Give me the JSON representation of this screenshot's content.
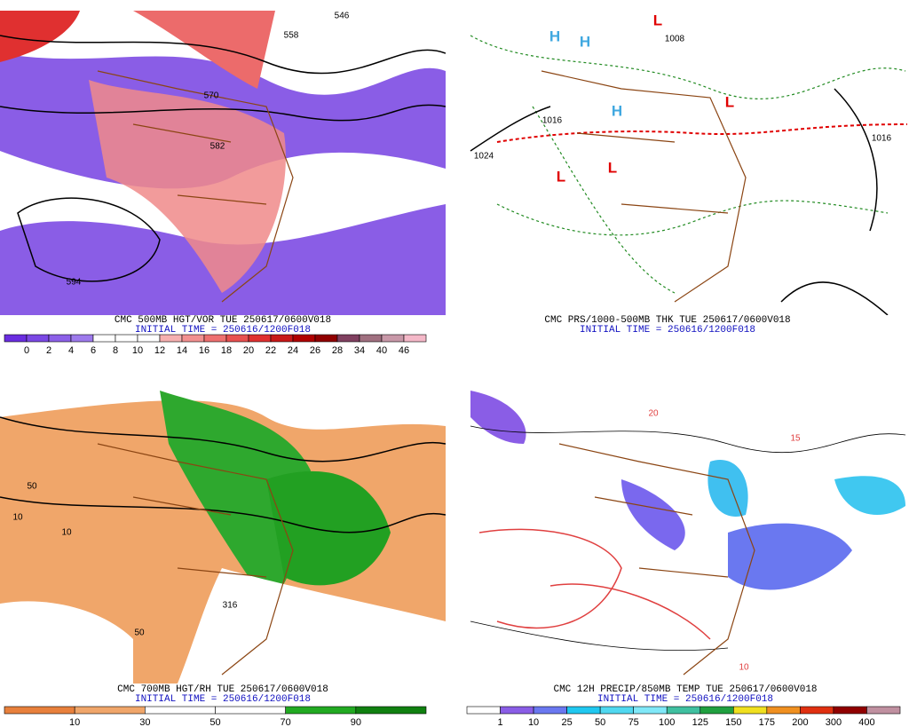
{
  "panels": [
    {
      "title": "CMC 500MB HGT/VOR TUE 250617/0600V018",
      "subtitle": "INITIAL TIME = 250616/1200F018",
      "colorbar": {
        "labels": [
          "0",
          "2",
          "4",
          "6",
          "8",
          "10",
          "12",
          "14",
          "16",
          "18",
          "20",
          "22",
          "24",
          "26",
          "28",
          "34",
          "40",
          "46"
        ],
        "colors": [
          "#6a2de0",
          "#7b48e4",
          "#8c60e8",
          "#9d7aec",
          "#ffffff",
          "#ffffff",
          "#ffffff",
          "#f6b0b0",
          "#f29090",
          "#ee7070",
          "#e85050",
          "#e03030",
          "#c81818",
          "#b00000",
          "#900000",
          "#804060",
          "#a07080",
          "#c898a8",
          "#f4b8c8"
        ]
      },
      "map_labels": [
        "558",
        "570",
        "582",
        "594",
        "546"
      ]
    },
    {
      "title": "CMC PRS/1000-500MB THK TUE 250617/0600V018",
      "subtitle": "INITIAL TIME = 250616/1200F018",
      "map_labels": [
        "L",
        "L",
        "L",
        "L",
        "H",
        "H",
        "H",
        "1008",
        "1016",
        "1024",
        "1016"
      ]
    },
    {
      "title": "CMC 700MB HGT/RH TUE 250617/0600V018",
      "subtitle": "INITIAL TIME = 250616/1200F018",
      "colorbar": {
        "labels": [
          "10",
          "30",
          "50",
          "70",
          "90"
        ],
        "colors": [
          "#e8803c",
          "#f0a66a",
          "#ffffff",
          "#ffffff",
          "#22aa22",
          "#108010"
        ]
      },
      "map_labels": [
        "10",
        "50",
        "50",
        "316",
        "10"
      ]
    },
    {
      "title": "CMC 12H PRECIP/850MB TEMP TUE 250617/0600V018",
      "subtitle": "INITIAL TIME = 250616/1200F018",
      "colorbar": {
        "labels": [
          "1",
          "10",
          "25",
          "50",
          "75",
          "100",
          "125",
          "150",
          "175",
          "200",
          "300",
          "400"
        ],
        "colors": [
          "#ffffff",
          "#8a5de6",
          "#6a78f0",
          "#20c8f0",
          "#50d8f0",
          "#80e8f8",
          "#40c0a0",
          "#20a040",
          "#f0e020",
          "#f09020",
          "#e03010",
          "#900000",
          "#c090a0"
        ]
      },
      "map_labels": [
        "20",
        "15",
        "10"
      ]
    }
  ]
}
